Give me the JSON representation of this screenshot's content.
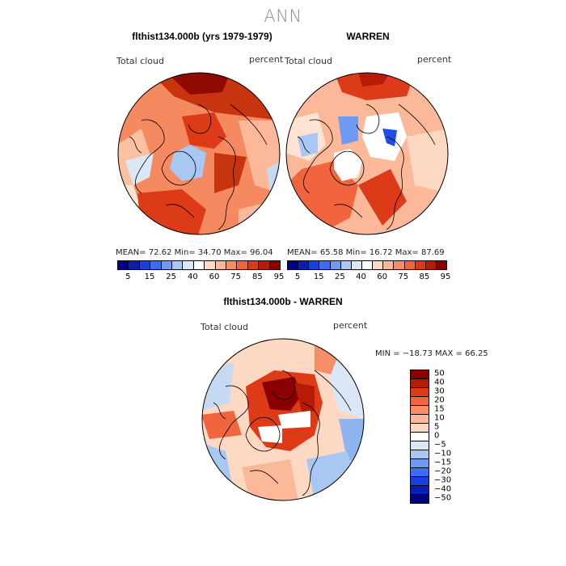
{
  "title": "ANN",
  "panels": [
    {
      "title": "flthist134.000b (yrs 1979-1979)",
      "left_label": "Total cloud",
      "right_label": "percent",
      "stats": "MEAN=  72.62   Min=  34.70   Max=  96.04"
    },
    {
      "title": "WARREN",
      "left_label": "Total cloud",
      "right_label": "percent",
      "stats": "MEAN=  65.58   Min=  16.72   Max=  87.69"
    },
    {
      "title": "flthist134.000b - WARREN",
      "left_label": "Total cloud",
      "right_label": "percent",
      "stats": "MIN = −18.73  MAX =   66.25"
    }
  ],
  "abs_colorbar": {
    "colors": [
      "#000080",
      "#0a1fb0",
      "#1640e0",
      "#3a6cf5",
      "#6f9af2",
      "#a9c7f3",
      "#dbe7f6",
      "#ffffff",
      "#fdd9c4",
      "#fbb99a",
      "#f78e68",
      "#f0653d",
      "#dd3b18",
      "#b81a08",
      "#8a0000"
    ],
    "labels": [
      "5",
      "15",
      "25",
      "40",
      "60",
      "75",
      "85",
      "95"
    ]
  },
  "diff_colorbar": {
    "colors": [
      "#8a0000",
      "#b81a08",
      "#dd3b18",
      "#f0653d",
      "#f78e68",
      "#fbb99a",
      "#fdd9c4",
      "#ffffff",
      "#dbe7f6",
      "#a9c7f3",
      "#6f9af2",
      "#3a6cf5",
      "#1640e0",
      "#0a1fb0",
      "#000080"
    ],
    "labels": [
      "50",
      "40",
      "30",
      "20",
      "15",
      "10",
      "5",
      "0",
      "−5",
      "−10",
      "−15",
      "−20",
      "−30",
      "−40",
      "−50"
    ]
  }
}
